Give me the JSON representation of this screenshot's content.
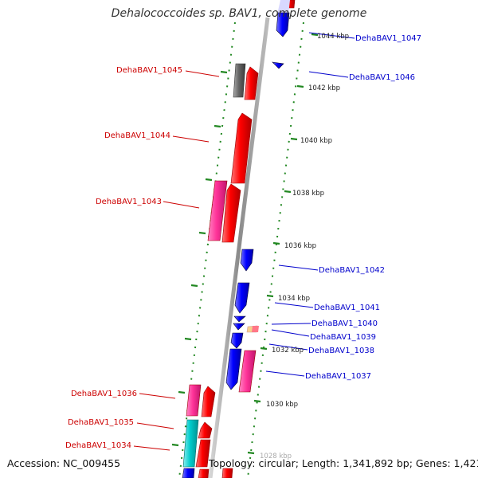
{
  "title": "Dehalococcoides sp. BAV1, complete genome",
  "accession_text": "Accession: NC_009455",
  "summary_text": "Topology: circular; Length: 1,341,892 bp; Genes: 1,421",
  "colors": {
    "forward": "#ff0000",
    "reverse": "#0000ff",
    "forward_label": "#cc0000",
    "reverse_label": "#0000cc",
    "pink": "#ff3399",
    "gray": "#666666",
    "cyan": "#00cccc",
    "ruler": "#228822",
    "backbone": "#9a9a9a"
  },
  "ruler_labels": [
    "1044 kbp",
    "1042 kbp",
    "1040 kbp",
    "1038 kbp",
    "1036 kbp",
    "1034 kbp",
    "1032 kbp",
    "1030 kbp",
    "1028 kbp"
  ],
  "left_genes": [
    "DehaBAV1_1045",
    "DehaBAV1_1044",
    "DehaBAV1_1043",
    "DehaBAV1_1036",
    "DehaBAV1_1035",
    "DehaBAV1_1034"
  ],
  "right_genes": [
    "DehaBAV1_1047",
    "DehaBAV1_1046",
    "DehaBAV1_1042",
    "DehaBAV1_1041",
    "DehaBAV1_1040",
    "DehaBAV1_1039",
    "DehaBAV1_1038",
    "DehaBAV1_1037"
  ]
}
